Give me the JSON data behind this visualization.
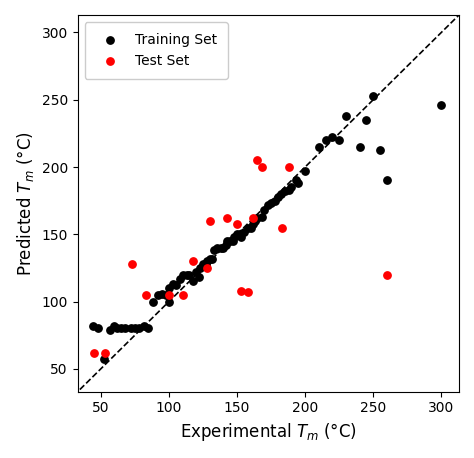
{
  "xlabel": "Experimental $T_m$ (°C)",
  "ylabel": "Predicted $T_m$ (°C)",
  "xlim": [
    33,
    313
  ],
  "ylim": [
    33,
    313
  ],
  "xticks": [
    50,
    100,
    150,
    200,
    250,
    300
  ],
  "yticks": [
    50,
    100,
    150,
    200,
    250,
    300
  ],
  "train_x": [
    44,
    48,
    52,
    57,
    60,
    62,
    65,
    68,
    72,
    75,
    78,
    82,
    85,
    88,
    92,
    95,
    98,
    100,
    100,
    103,
    105,
    108,
    110,
    113,
    115,
    118,
    120,
    122,
    123,
    125,
    127,
    128,
    130,
    132,
    133,
    135,
    138,
    140,
    142,
    143,
    145,
    147,
    148,
    150,
    152,
    153,
    155,
    158,
    160,
    162,
    163,
    165,
    168,
    170,
    173,
    175,
    178,
    180,
    182,
    185,
    188,
    190,
    193,
    195,
    200,
    210,
    215,
    220,
    225,
    230,
    240,
    245,
    250,
    255,
    260,
    300
  ],
  "train_y": [
    82,
    80,
    57,
    79,
    82,
    80,
    80,
    80,
    80,
    80,
    80,
    82,
    80,
    100,
    105,
    106,
    105,
    100,
    110,
    113,
    112,
    117,
    120,
    120,
    120,
    115,
    122,
    118,
    125,
    128,
    127,
    130,
    132,
    132,
    138,
    140,
    140,
    140,
    142,
    145,
    145,
    145,
    148,
    150,
    150,
    148,
    152,
    155,
    155,
    158,
    160,
    162,
    163,
    168,
    172,
    173,
    175,
    178,
    180,
    182,
    183,
    185,
    190,
    188,
    197,
    215,
    220,
    222,
    220,
    238,
    215,
    235,
    253,
    213,
    190,
    246
  ],
  "test_x": [
    45,
    53,
    73,
    83,
    100,
    110,
    118,
    128,
    130,
    143,
    150,
    153,
    158,
    162,
    165,
    168,
    183,
    188,
    260
  ],
  "test_y": [
    62,
    62,
    128,
    105,
    105,
    105,
    130,
    125,
    160,
    162,
    158,
    108,
    107,
    162,
    205,
    200,
    155,
    200,
    120
  ]
}
